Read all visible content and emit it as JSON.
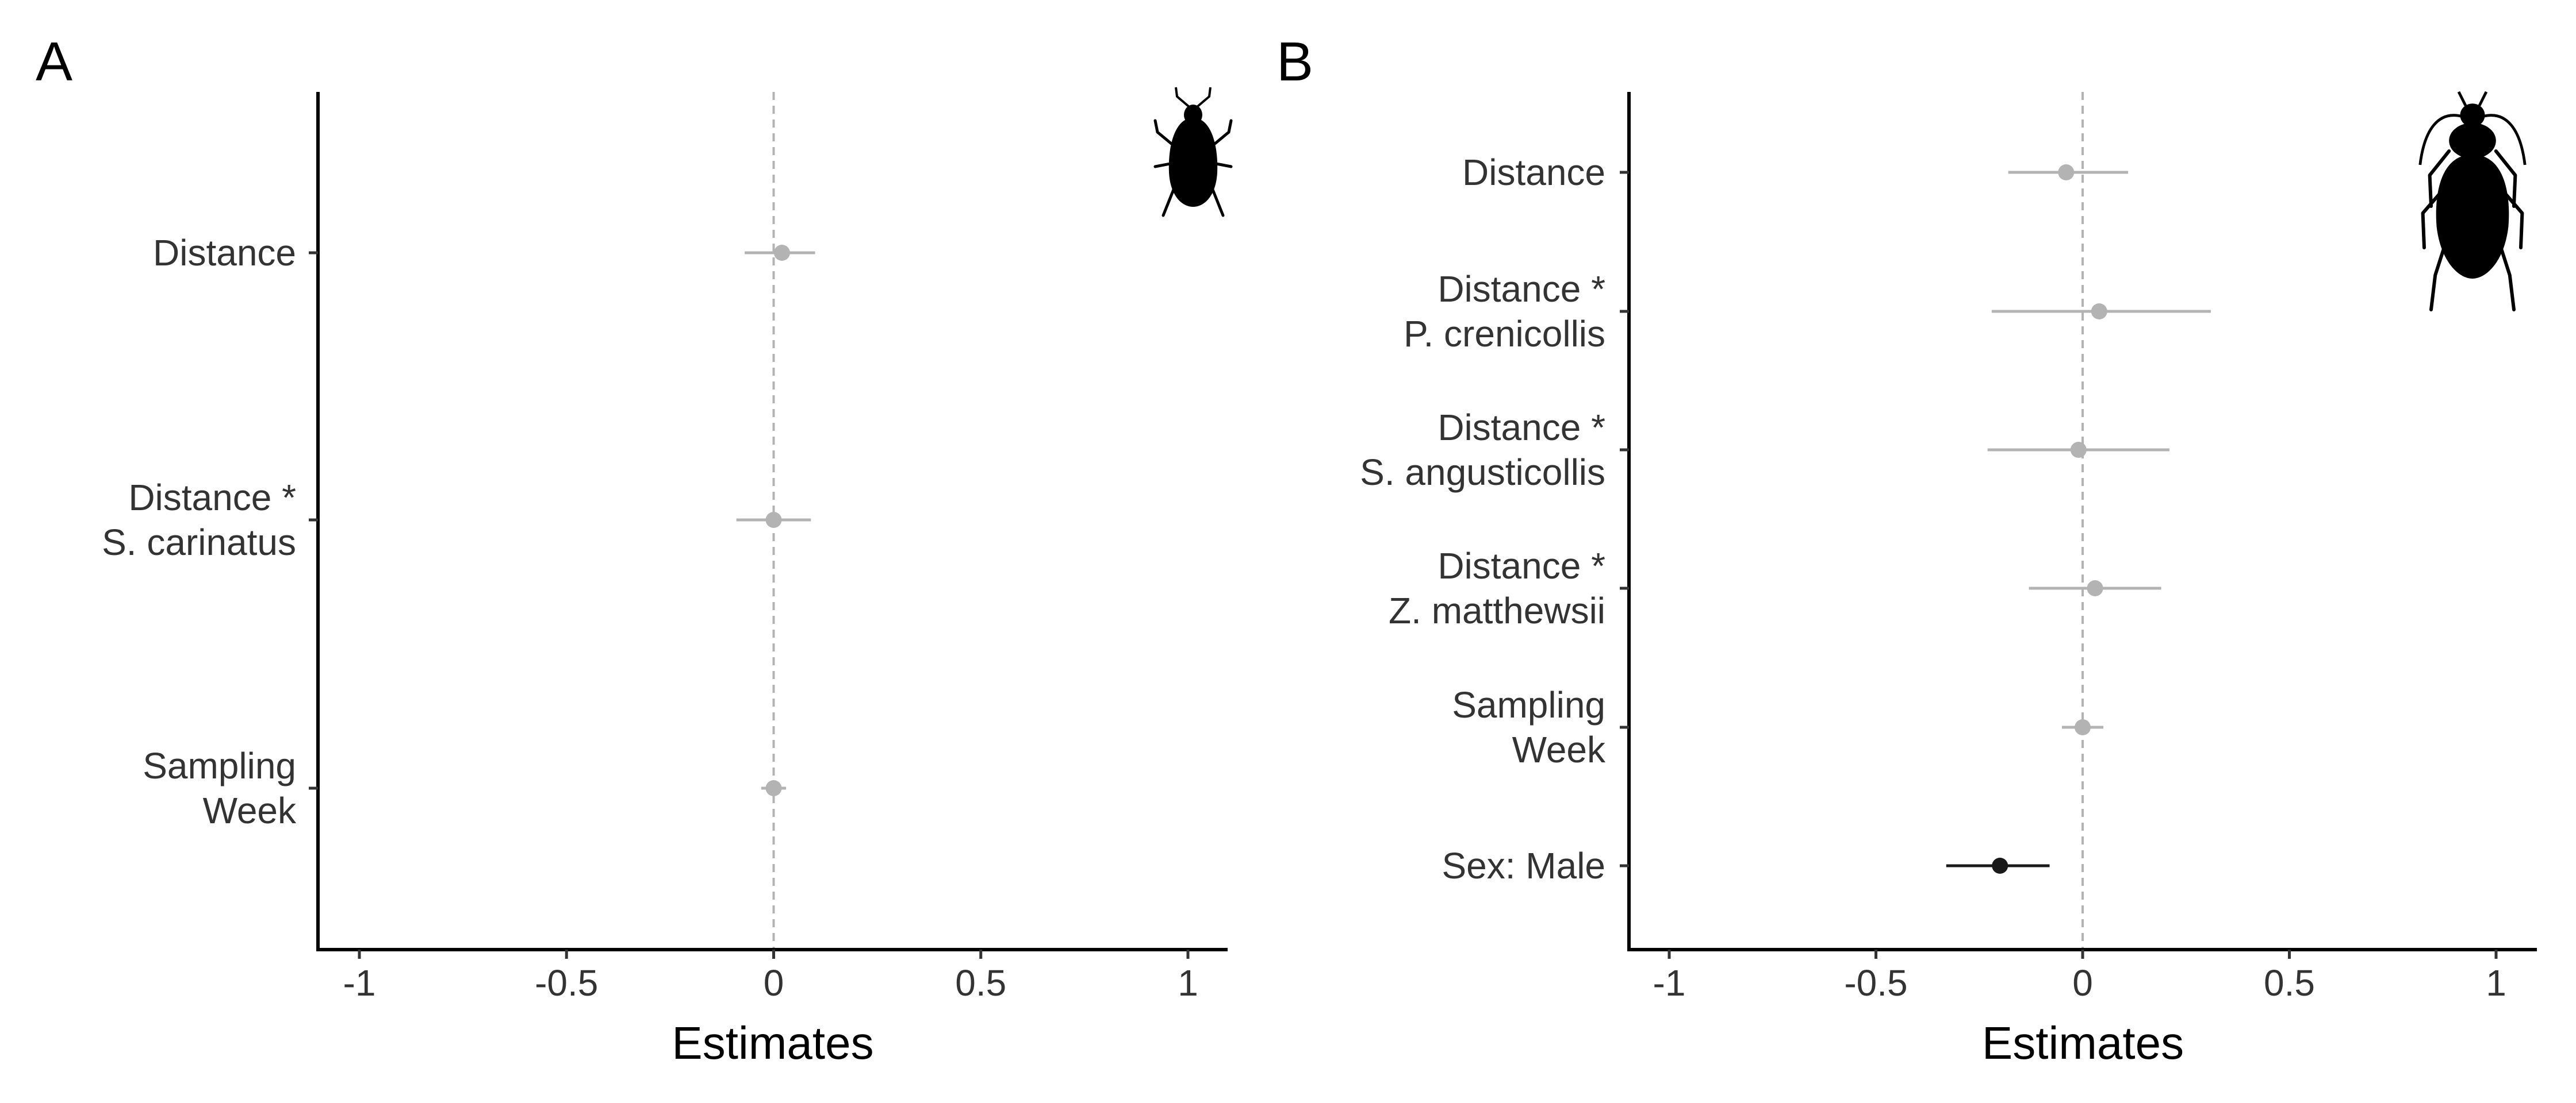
{
  "chart_data": [
    {
      "panel_label": "A",
      "type": "forest",
      "xlabel": "Estimates",
      "xlim": [
        -1.1,
        1.1
      ],
      "xticks": [
        -1,
        -0.5,
        0,
        0.5,
        1
      ],
      "xtick_labels": [
        "-1",
        "-0.5",
        "0",
        "0.5",
        "1"
      ],
      "reference_line": 0,
      "icon": "weevil-beetle-icon",
      "categories": [
        {
          "label_lines": [
            "Distance"
          ],
          "estimate": 0.02,
          "ci": [
            -0.07,
            0.1
          ],
          "color": "#b3b3b3"
        },
        {
          "label_lines": [
            "Distance *",
            "S. carinatus"
          ],
          "estimate": 0.0,
          "ci": [
            -0.09,
            0.09
          ],
          "color": "#b3b3b3"
        },
        {
          "label_lines": [
            "Sampling",
            "Week"
          ],
          "estimate": 0.0,
          "ci": [
            -0.03,
            0.03
          ],
          "color": "#b3b3b3"
        }
      ]
    },
    {
      "panel_label": "B",
      "type": "forest",
      "xlabel": "Estimates",
      "xlim": [
        -1.1,
        1.1
      ],
      "xticks": [
        -1,
        -0.5,
        0,
        0.5,
        1
      ],
      "xtick_labels": [
        "-1",
        "-0.5",
        "0",
        "0.5",
        "1"
      ],
      "reference_line": 0,
      "icon": "ground-beetle-icon",
      "categories": [
        {
          "label_lines": [
            "Distance"
          ],
          "estimate": -0.04,
          "ci": [
            -0.18,
            0.11
          ],
          "color": "#b3b3b3"
        },
        {
          "label_lines": [
            "Distance *",
            "P. crenicollis"
          ],
          "estimate": 0.04,
          "ci": [
            -0.22,
            0.31
          ],
          "color": "#b3b3b3"
        },
        {
          "label_lines": [
            "Distance *",
            "S. angusticollis"
          ],
          "estimate": -0.01,
          "ci": [
            -0.23,
            0.21
          ],
          "color": "#b3b3b3"
        },
        {
          "label_lines": [
            "Distance *",
            "Z. matthewsii"
          ],
          "estimate": 0.03,
          "ci": [
            -0.13,
            0.19
          ],
          "color": "#b3b3b3"
        },
        {
          "label_lines": [
            "Sampling",
            "Week"
          ],
          "estimate": 0.0,
          "ci": [
            -0.05,
            0.05
          ],
          "color": "#b3b3b3"
        },
        {
          "label_lines": [
            "Sex: Male"
          ],
          "estimate": -0.2,
          "ci": [
            -0.33,
            -0.08
          ],
          "color": "#1a1a1a"
        }
      ]
    }
  ]
}
